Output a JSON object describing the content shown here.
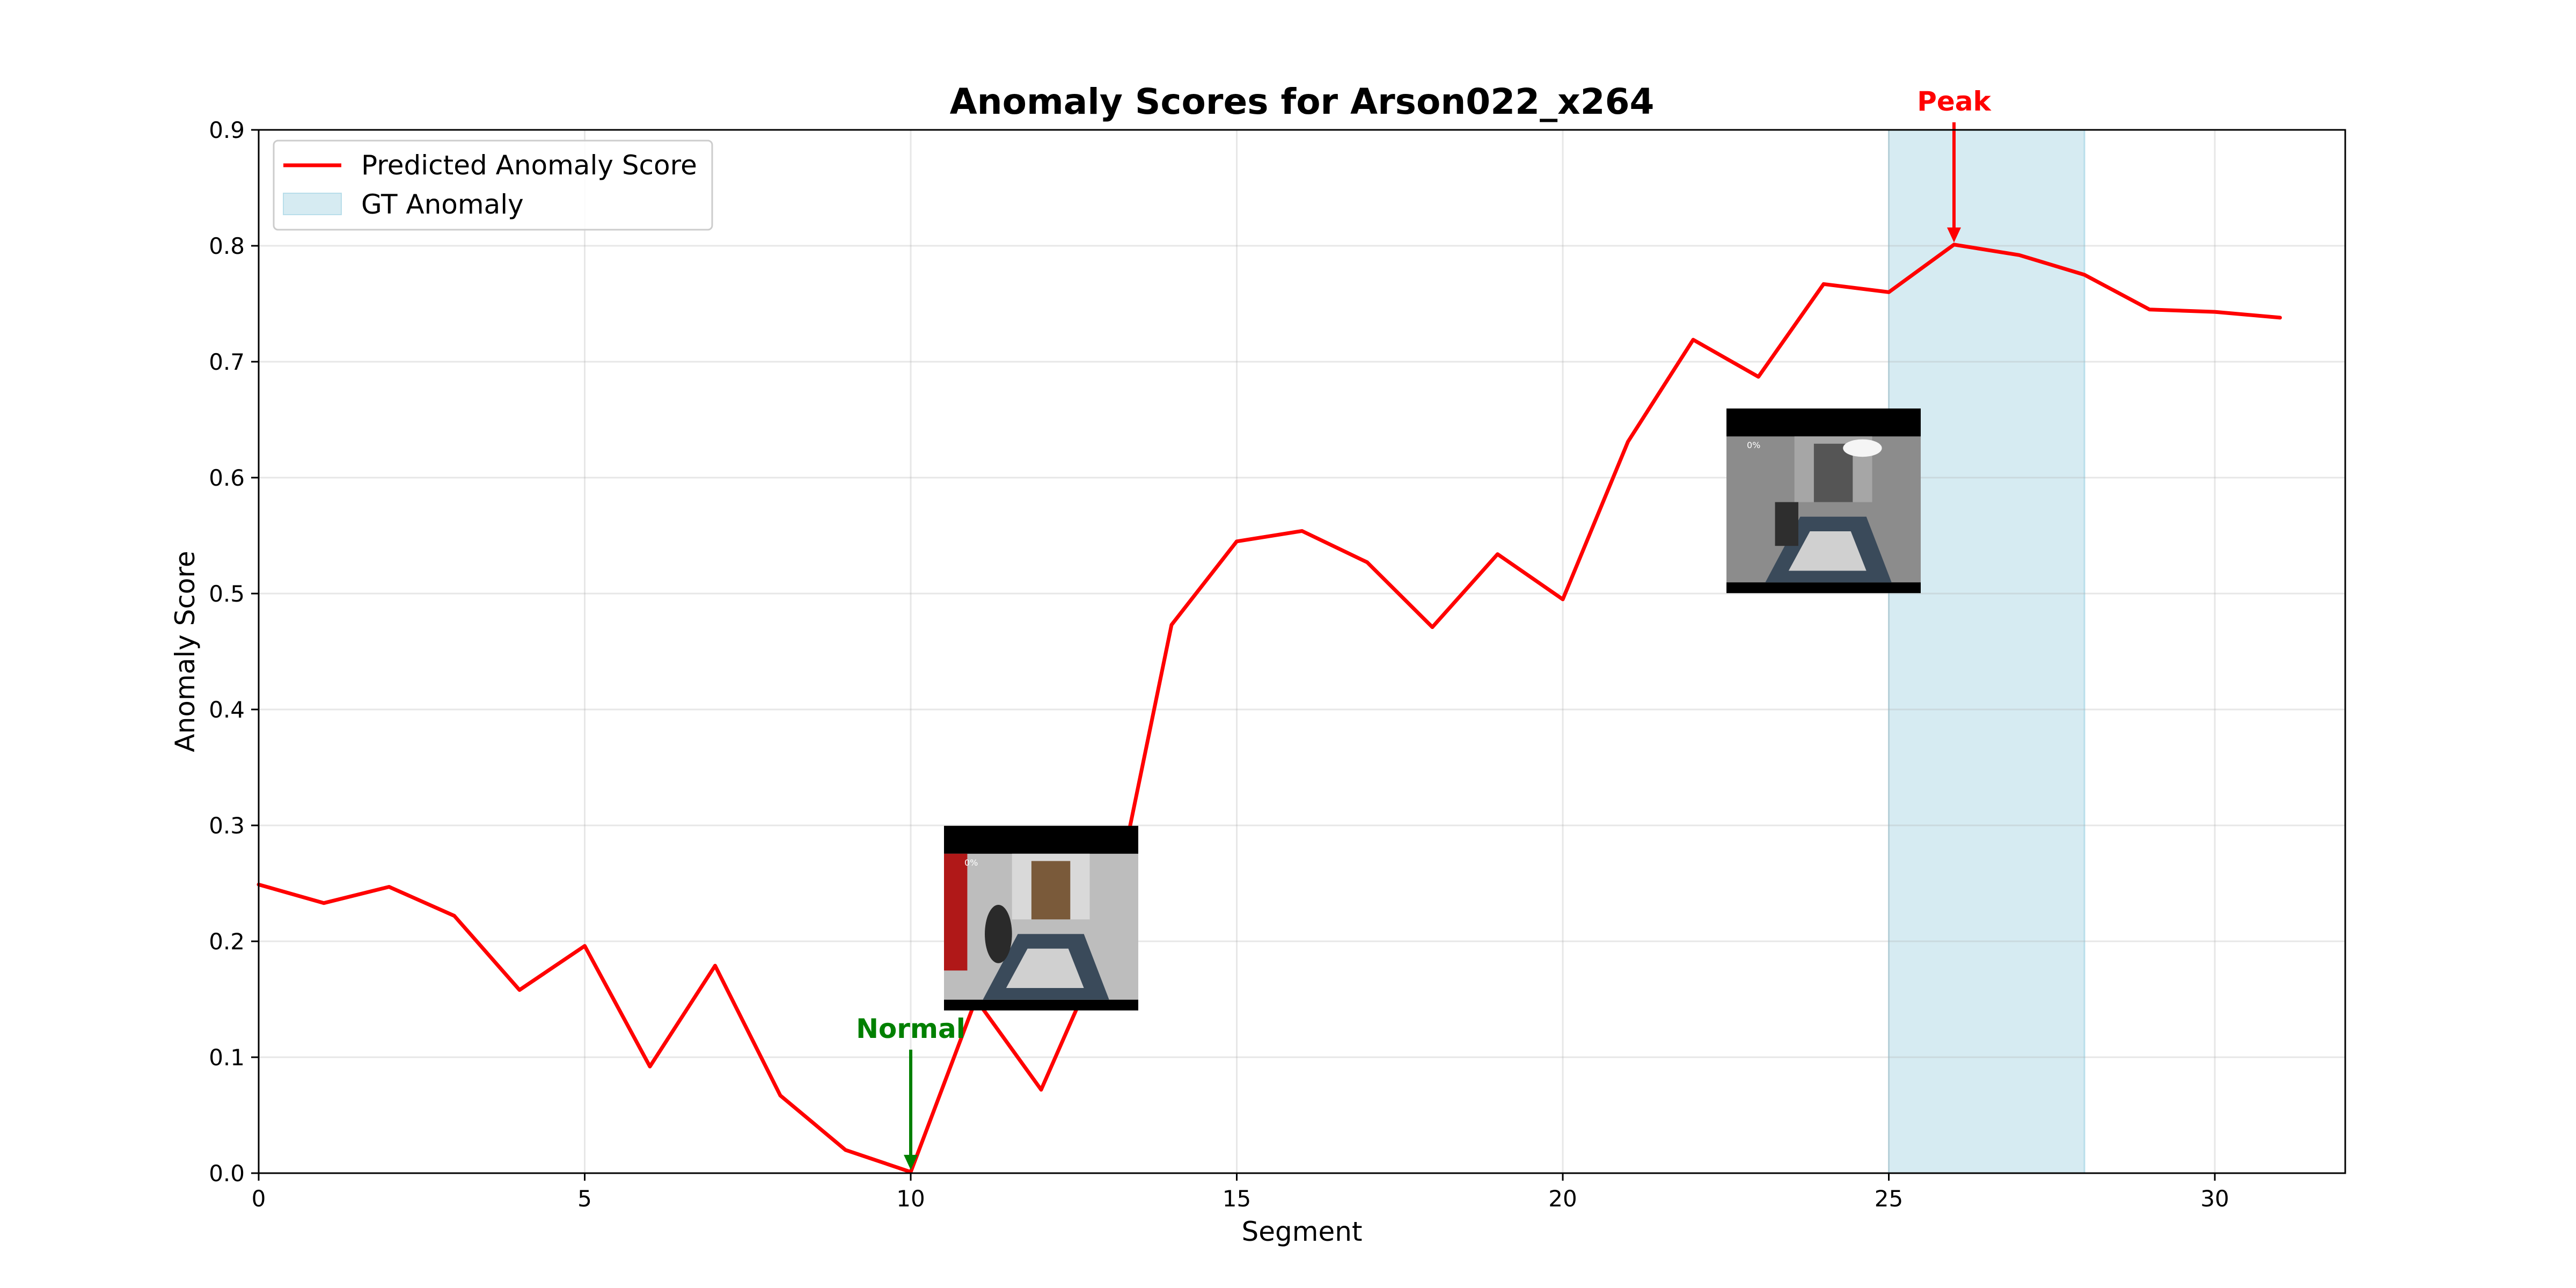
{
  "chart_data": {
    "type": "line",
    "title": "Anomaly Scores for Arson022_x264",
    "xlabel": "Segment",
    "ylabel": "Anomaly Score",
    "xlim": [
      0,
      32
    ],
    "ylim": [
      0,
      0.9
    ],
    "xticks": [
      0,
      5,
      10,
      15,
      20,
      25,
      30
    ],
    "yticks": [
      0.0,
      0.1,
      0.2,
      0.3,
      0.4,
      0.5,
      0.6,
      0.7,
      0.8,
      0.9
    ],
    "grid": true,
    "legend_position": "top-left",
    "series": [
      {
        "name": "Predicted Anomaly Score",
        "color": "#ff0000",
        "x": [
          0,
          1,
          2,
          3,
          4,
          5,
          6,
          7,
          8,
          9,
          10,
          11,
          12,
          13,
          14,
          15,
          16,
          17,
          18,
          19,
          20,
          21,
          22,
          23,
          24,
          25,
          26,
          27,
          28,
          29,
          30,
          31
        ],
        "y": [
          0.249,
          0.233,
          0.247,
          0.222,
          0.158,
          0.196,
          0.092,
          0.179,
          0.067,
          0.02,
          0.001,
          0.15,
          0.072,
          0.2,
          0.473,
          0.545,
          0.554,
          0.527,
          0.471,
          0.534,
          0.495,
          0.631,
          0.719,
          0.687,
          0.767,
          0.76,
          0.801,
          0.792,
          0.775,
          0.745,
          0.743,
          0.738
        ]
      }
    ],
    "shaded_regions": [
      {
        "name": "GT Anomaly",
        "x_start": 25,
        "x_end": 28,
        "color": "#add8e6"
      }
    ],
    "annotations": [
      {
        "text": "Peak",
        "x": 26,
        "y": 0.801,
        "color": "#ff0000"
      },
      {
        "text": "Normal",
        "x": 10,
        "y": 0.001,
        "color": "#008000"
      }
    ],
    "frame_thumbnails": [
      {
        "name": "frame-thumbnail-normal",
        "x": 12,
        "y": 0.22,
        "overlay_text": "0%"
      },
      {
        "name": "frame-thumbnail-peak",
        "x": 24,
        "y": 0.58,
        "overlay_text": "0%"
      }
    ]
  }
}
